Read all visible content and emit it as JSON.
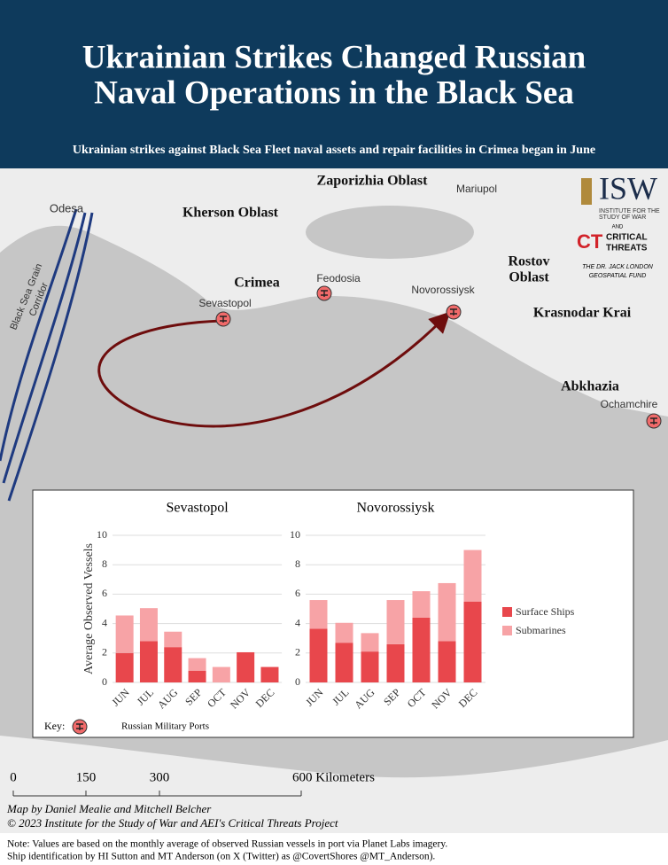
{
  "header": {
    "title_lines": [
      "Ukrainian Strikes Changed Russian",
      "Naval Operations in the Black Sea"
    ],
    "subtitle": "Ukrainian strikes against Black Sea Fleet naval assets and repair facilities in Crimea began in June"
  },
  "map": {
    "labels": [
      "Odesa",
      "Kherson Oblast",
      "Zaporizhia Oblast",
      "Mariupol",
      "Crimea",
      "Feodosia",
      "Sevastopol",
      "Novorossiysk",
      "Rostov",
      "Oblast",
      "Krasnodar Krai",
      "Abkhazia",
      "Ochamchire"
    ],
    "corridor_label": [
      "Black Sea Grain",
      "Corridor"
    ],
    "logo": {
      "isw": "ISW",
      "isw_sub": [
        "INSTITUTE FOR THE",
        "STUDY OF WAR"
      ],
      "and": "AND",
      "ct": "CT",
      "ct_sub": [
        "CRITICAL",
        "THREATS"
      ],
      "fund": [
        "THE DR. JACK LONDON",
        "GEOSPATIAL FUND"
      ]
    },
    "key": {
      "label": "Key:",
      "item": "Russian Military Ports"
    },
    "scale": {
      "ticks": [
        "0",
        "150",
        "300",
        "600 Kilometers"
      ]
    },
    "credits": [
      "Map by Daniel Mealie and Mitchell Belcher",
      "© 2023 Institute for the Study of War and AEI's Critical Threats Project"
    ]
  },
  "chart_data": [
    {
      "type": "bar",
      "stacked": true,
      "title": "Sevastopol",
      "y_label": "Average Observed Vessels",
      "categories": [
        "JUN",
        "JUL",
        "AUG",
        "SEP",
        "OCT",
        "NOV",
        "DEC"
      ],
      "series": [
        {
          "name": "Surface Ships",
          "color": "#e8474c",
          "values": [
            2.0,
            2.8,
            2.4,
            0.8,
            0,
            2.05,
            1.05
          ]
        },
        {
          "name": "Submarines",
          "color": "#f7a3a6",
          "values": [
            2.55,
            2.25,
            1.05,
            0.85,
            1.05,
            0,
            0
          ]
        }
      ],
      "ylim": [
        0,
        10
      ],
      "yticks": [
        0,
        2,
        4,
        6,
        8,
        10
      ],
      "grid": true
    },
    {
      "type": "bar",
      "stacked": true,
      "title": "Novorossiysk",
      "categories": [
        "JUN",
        "JUL",
        "AUG",
        "SEP",
        "OCT",
        "NOV",
        "DEC"
      ],
      "series": [
        {
          "color": "#e8474c",
          "values": [
            3.65,
            2.7,
            2.1,
            2.6,
            4.4,
            2.8,
            5.5
          ]
        },
        {
          "color": "#f7a3a6",
          "values": [
            1.95,
            1.35,
            1.25,
            3.0,
            1.8,
            3.95,
            3.5
          ]
        }
      ],
      "ylim": [
        0,
        10
      ],
      "yticks": [
        0,
        2,
        4,
        6,
        8,
        10
      ],
      "grid": true
    }
  ],
  "footer": [
    "Note: Values are based on the monthly average of observed Russian vessels in port via Planet Labs imagery.",
    "Ship identification by HI Sutton and MT Anderson (on X (Twitter) as @CovertShores @MT_Anderson)."
  ]
}
